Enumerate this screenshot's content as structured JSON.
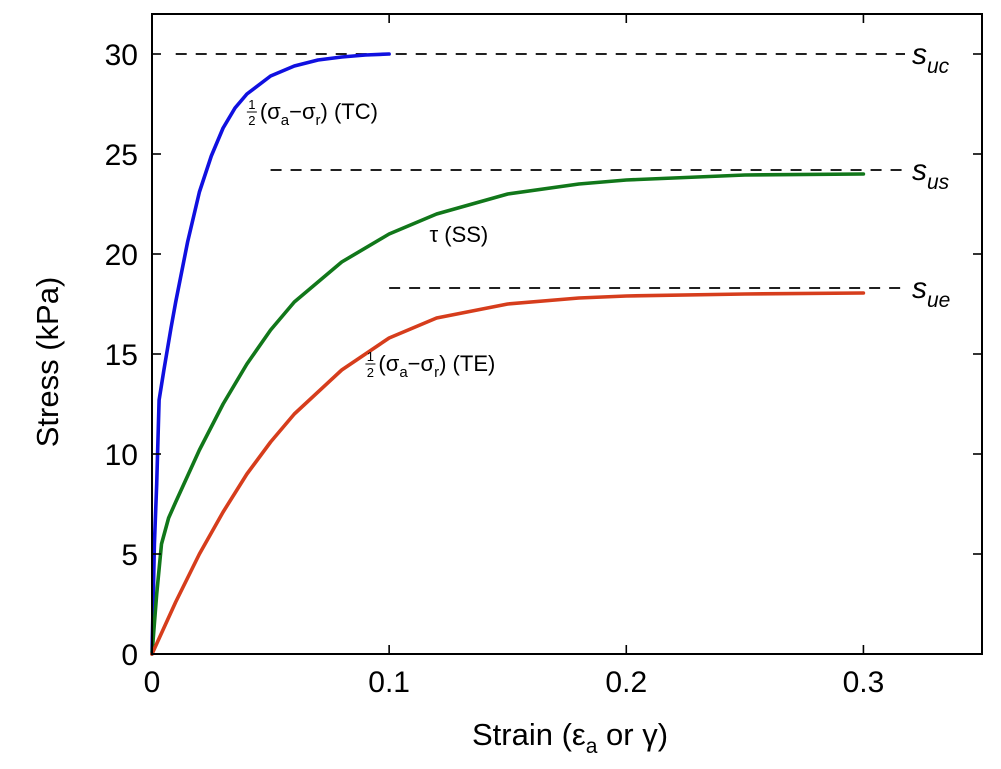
{
  "chart_data": {
    "type": "line",
    "xlabel": "Strain (εa or γ)",
    "ylabel": "Stress (kPa)",
    "xlim": [
      0,
      0.35
    ],
    "ylim": [
      0,
      32
    ],
    "x_ticks": [
      0,
      0.1,
      0.2,
      0.3
    ],
    "x_tick_labels": [
      "0",
      "0.1",
      "0.2",
      "0.3"
    ],
    "y_ticks": [
      0,
      5,
      10,
      15,
      20,
      25,
      30
    ],
    "y_tick_labels": [
      "0",
      "5",
      "10",
      "15",
      "20",
      "25",
      "30"
    ],
    "grid": false,
    "legend": "none",
    "series": [
      {
        "name": "½(σa−σr) (TC)",
        "color": "#1010e0",
        "x": [
          0,
          0.001,
          0.002,
          0.003,
          0.005,
          0.008,
          0.01,
          0.015,
          0.02,
          0.025,
          0.03,
          0.035,
          0.04,
          0.05,
          0.06,
          0.07,
          0.08,
          0.09,
          0.1
        ],
        "y": [
          0,
          5.5,
          8.5,
          12.7,
          14.2,
          16.3,
          17.6,
          20.6,
          23.1,
          24.9,
          26.3,
          27.3,
          28.0,
          28.9,
          29.4,
          29.7,
          29.85,
          29.95,
          30.0
        ]
      },
      {
        "name": "τ (SS)",
        "color": "#11771a",
        "x": [
          0,
          0.002,
          0.004,
          0.007,
          0.01,
          0.02,
          0.03,
          0.04,
          0.05,
          0.06,
          0.08,
          0.1,
          0.12,
          0.15,
          0.18,
          0.2,
          0.25,
          0.3
        ],
        "y": [
          0,
          3.0,
          5.5,
          6.8,
          7.6,
          10.2,
          12.5,
          14.5,
          16.2,
          17.6,
          19.6,
          21.0,
          22.0,
          23.0,
          23.5,
          23.7,
          23.95,
          24.0
        ]
      },
      {
        "name": "½(σa−σr) (TE)",
        "color": "#d63d1c",
        "x": [
          0,
          0.01,
          0.02,
          0.03,
          0.04,
          0.05,
          0.06,
          0.08,
          0.1,
          0.12,
          0.15,
          0.18,
          0.2,
          0.25,
          0.3
        ],
        "y": [
          0,
          2.6,
          5.0,
          7.1,
          9.0,
          10.6,
          12.0,
          14.2,
          15.8,
          16.8,
          17.5,
          17.8,
          17.9,
          18.0,
          18.05
        ]
      }
    ],
    "reference_lines": [
      {
        "label": "s",
        "sub": "uc",
        "y": 30.0,
        "x_start": 0.01
      },
      {
        "label": "s",
        "sub": "us",
        "y": 24.2,
        "x_start": 0.05
      },
      {
        "label": "s",
        "sub": "ue",
        "y": 18.3,
        "x_start": 0.1
      }
    ],
    "annotations": [
      {
        "half": "1/2",
        "prefix": "(σ",
        "sub1": "a",
        "mid": "−σ",
        "sub2": "r",
        "suffix": ") (TC)",
        "x": 0.04,
        "y": 26.8
      },
      {
        "text": "τ (SS)",
        "x": 0.117,
        "y": 20.6
      },
      {
        "half": "1/2",
        "prefix": "(σ",
        "sub1": "a",
        "mid": "−σ",
        "sub2": "r",
        "suffix": ") (TE)",
        "x": 0.09,
        "y": 14.2
      }
    ],
    "xlabel_parts": {
      "pre": "Strain (ε",
      "sub": "a",
      "post": " or γ)"
    }
  }
}
